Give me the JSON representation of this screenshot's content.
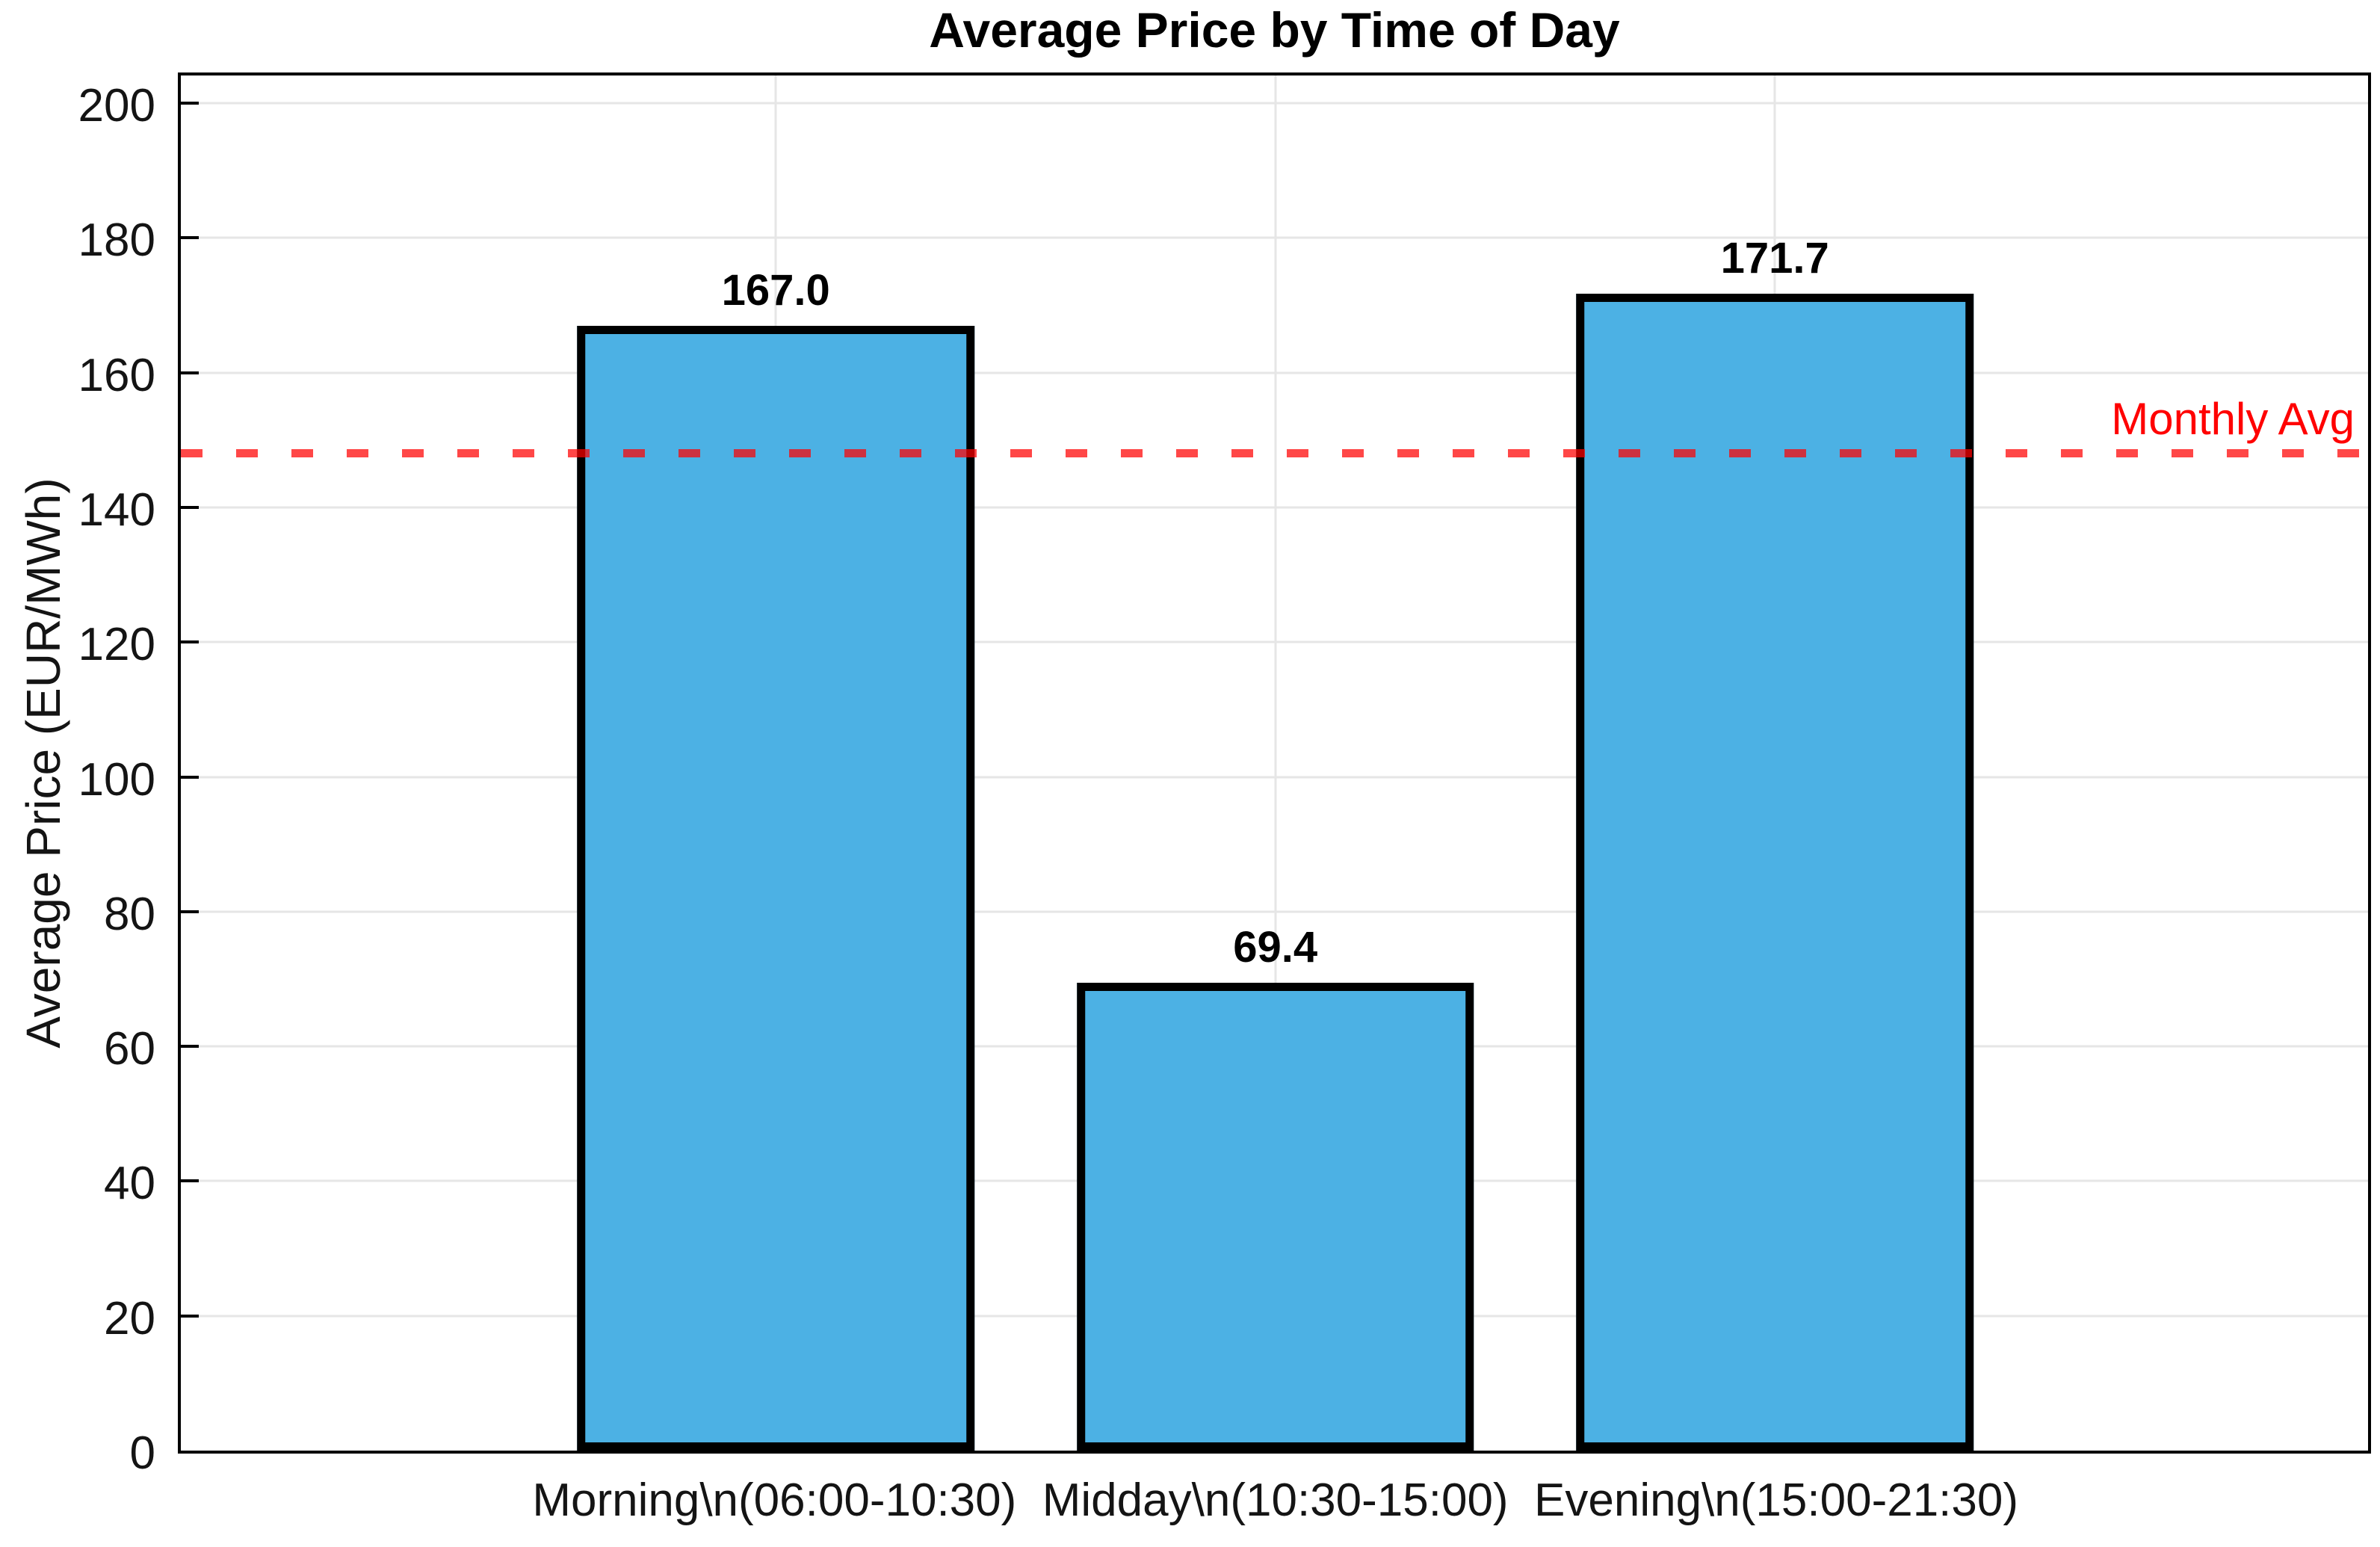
{
  "chart_data": {
    "type": "bar",
    "title": "Average Price by Time of Day",
    "xlabel": "",
    "ylabel": "Average Price (EUR/MWh)",
    "categories": [
      "Morning\\n(06:00-10:30)",
      "Midday\\n(10:30-15:00)",
      "Evening\\n(15:00-21:30)"
    ],
    "values": [
      167.0,
      69.4,
      171.7
    ],
    "value_labels": [
      "167.0",
      "69.4",
      "171.7"
    ],
    "yticks": [
      0,
      20,
      40,
      60,
      80,
      100,
      120,
      140,
      160,
      180,
      200
    ],
    "ylim": [
      0,
      205
    ],
    "grid": true,
    "legend": "none",
    "bar_color": "#4cb1e4",
    "bar_edge_color": "#000000",
    "gridline_color": "#e6e6e6",
    "reference_line": {
      "value": 148,
      "label": "Monthly Avg",
      "label_color": "#ff0000",
      "line_color_rgba": "rgba(255,0,0,0.72)",
      "style": "dashed"
    }
  }
}
